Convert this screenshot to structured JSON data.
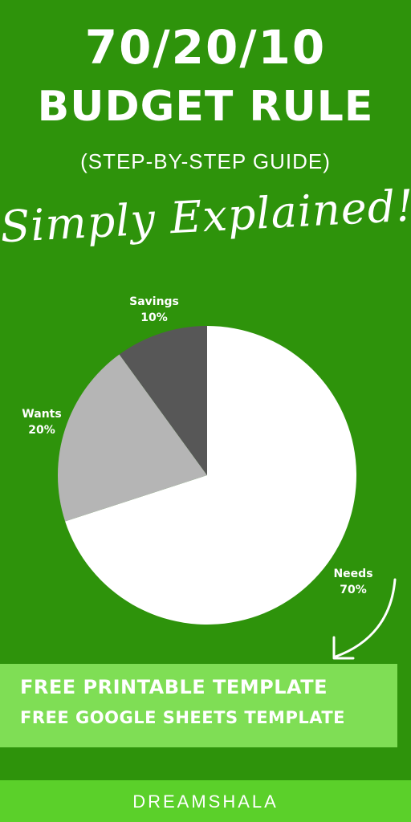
{
  "header": {
    "line1": "70/20/10",
    "line2": "BUDGET RULE",
    "subtitle": "(STEP-BY-STEP GUIDE)",
    "script_text": "Simply Explained!"
  },
  "chart_data": {
    "type": "pie",
    "slices": [
      {
        "label": "Needs",
        "value": 70,
        "value_label": "70%",
        "color": "#ffffff"
      },
      {
        "label": "Wants",
        "value": 20,
        "value_label": "20%",
        "color": "#b5b5b5"
      },
      {
        "label": "Savings",
        "value": 10,
        "value_label": "10%",
        "color": "#575757"
      }
    ],
    "start_angle_deg": 0,
    "direction": "clockwise"
  },
  "banner": {
    "line1": "FREE PRINTABLE TEMPLATE",
    "line2": "FREE GOOGLE SHEETS TEMPLATE"
  },
  "footer": {
    "brand": "DREAMSHALA"
  },
  "colors": {
    "background": "#2e930b",
    "banner": "#7fde55",
    "footer": "#5bd02a"
  }
}
